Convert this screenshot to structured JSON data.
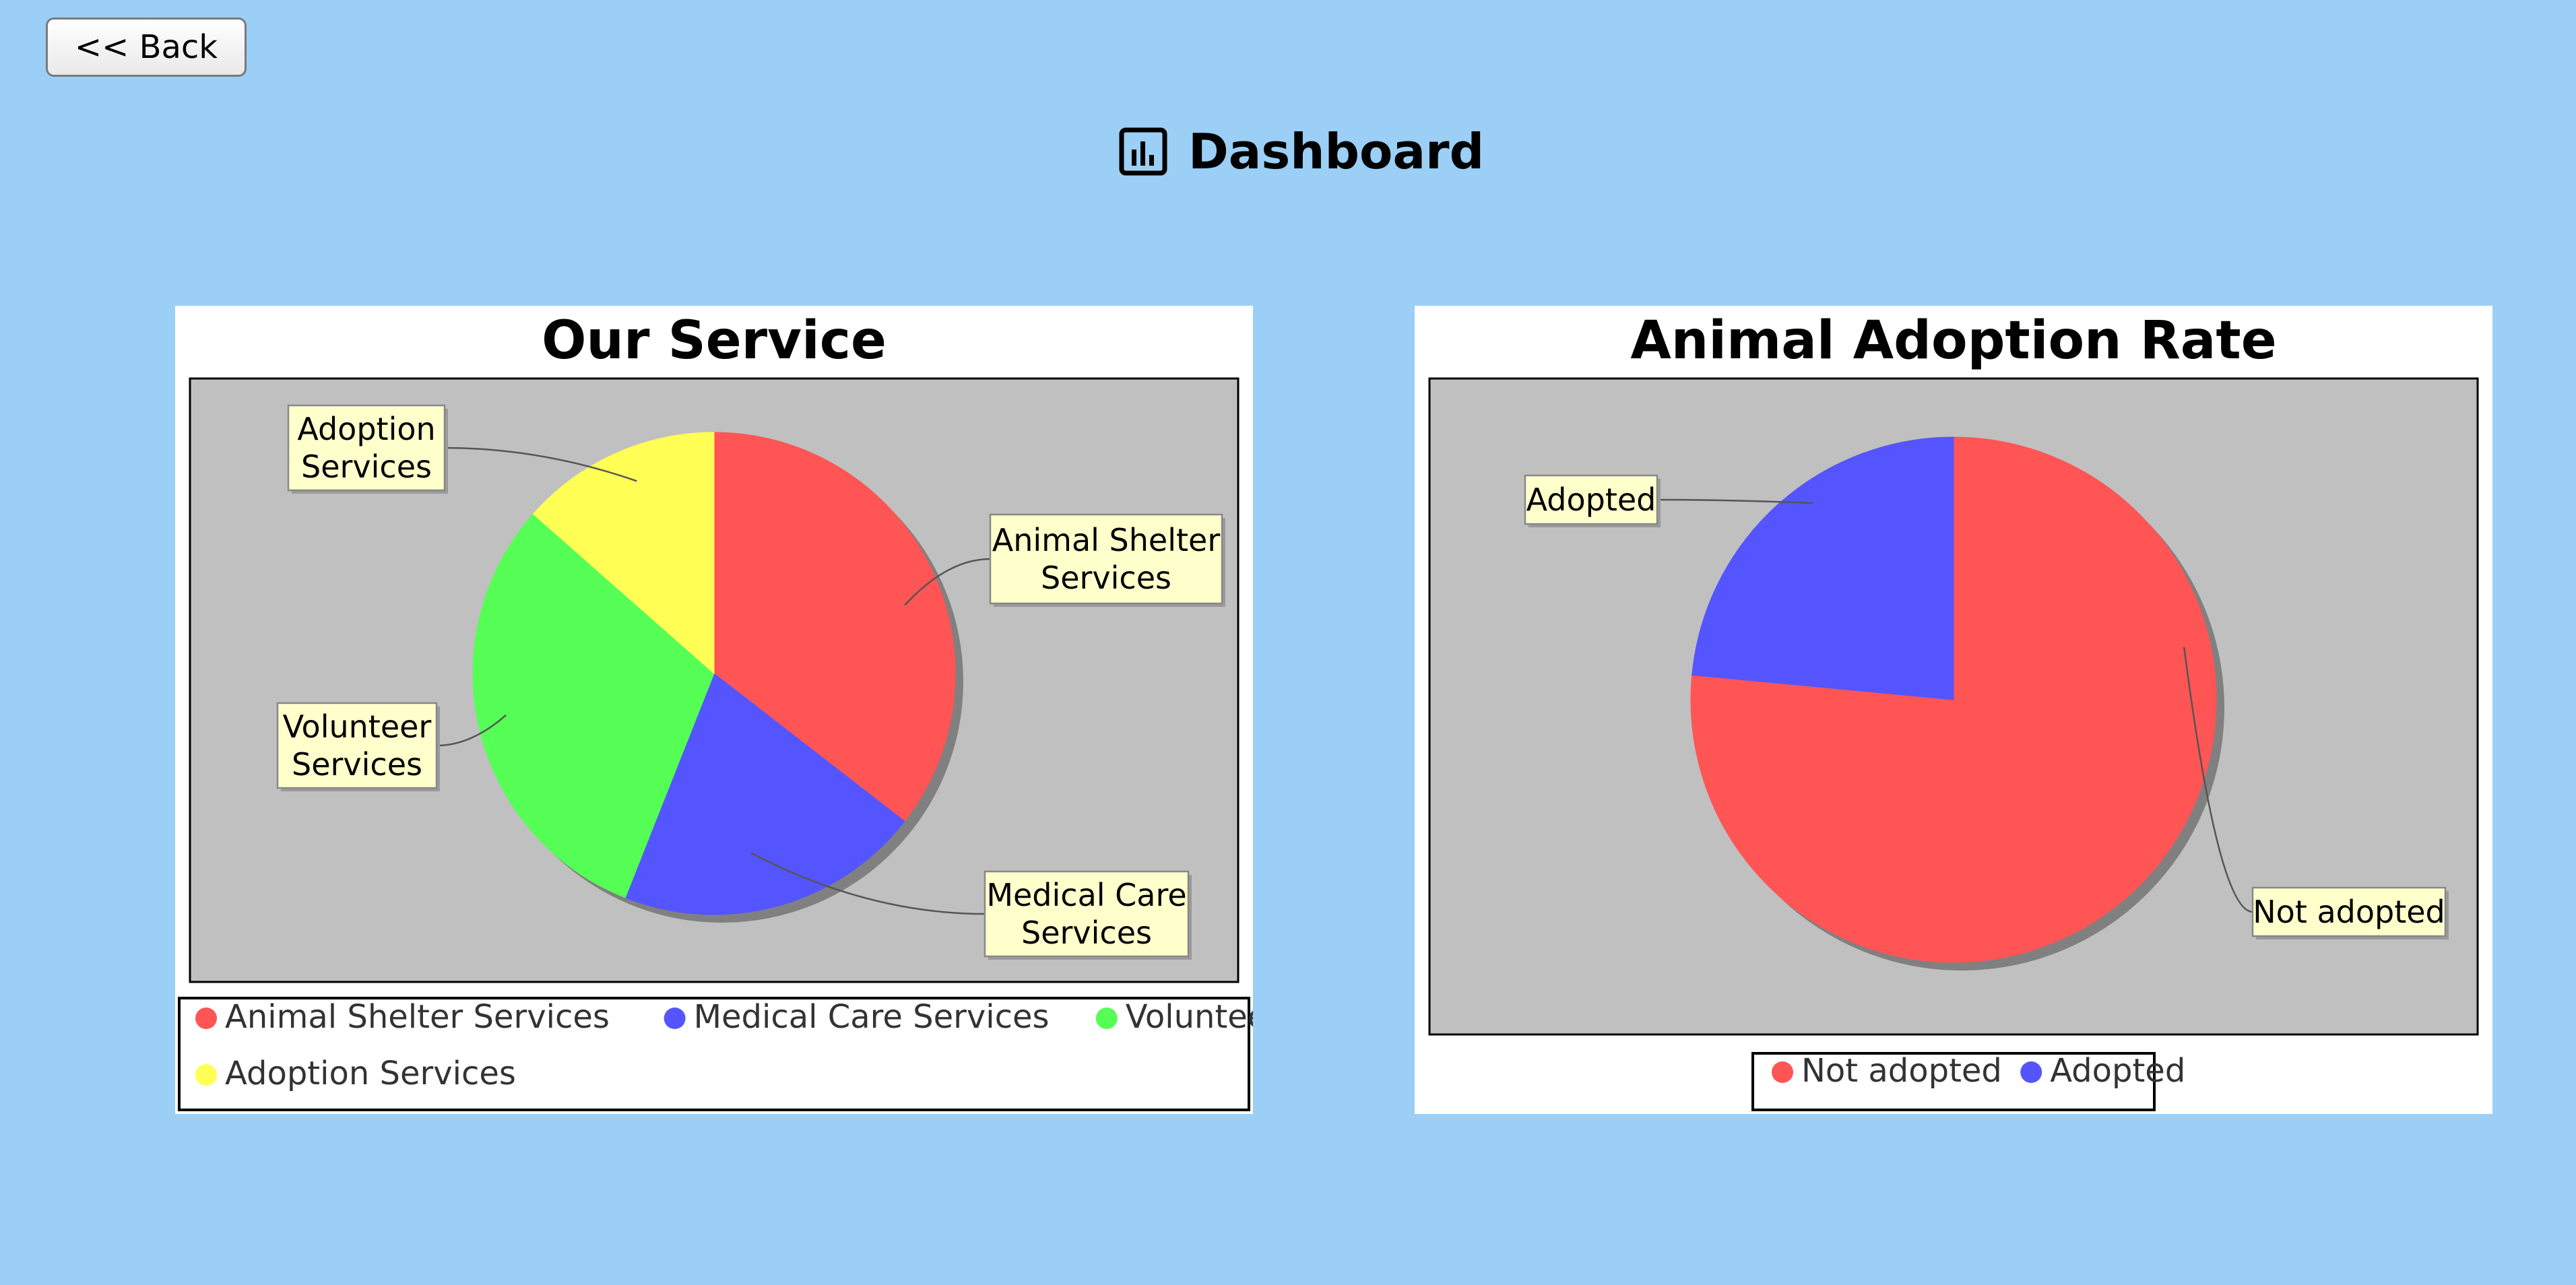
{
  "page": {
    "back_label": "<< Back",
    "title": "Dashboard",
    "title_icon": "bar-chart-icon",
    "background_color": "#9bcff5"
  },
  "chart_data": [
    {
      "type": "pie",
      "title": "Our Service",
      "start_angle_deg": 90,
      "direction": "clockwise",
      "slices": [
        {
          "label": "Animal Shelter Services",
          "value": 35.5,
          "color": "#ff5555"
        },
        {
          "label": "Medical Care Services",
          "value": 20.5,
          "color": "#5555ff"
        },
        {
          "label": "Volunteer Services",
          "value": 30.5,
          "color": "#55ff55"
        },
        {
          "label": "Adoption Services",
          "value": 13.5,
          "color": "#ffff55"
        }
      ],
      "legend": {
        "position": "bottom",
        "items": [
          "Animal Shelter Services",
          "Medical Care Services",
          "Volunteer Services",
          "Adoption Services"
        ]
      },
      "plot_background": "#c0c0c0",
      "label_background": "#ffffcc"
    },
    {
      "type": "pie",
      "title": "Animal Adoption Rate",
      "start_angle_deg": 90,
      "direction": "clockwise",
      "slices": [
        {
          "label": "Not adopted",
          "value": 76.5,
          "color": "#ff5555"
        },
        {
          "label": "Adopted",
          "value": 23.5,
          "color": "#5555ff"
        }
      ],
      "legend": {
        "position": "bottom",
        "items": [
          "Not adopted",
          "Adopted"
        ]
      },
      "plot_background": "#c0c0c0",
      "label_background": "#ffffcc"
    }
  ]
}
